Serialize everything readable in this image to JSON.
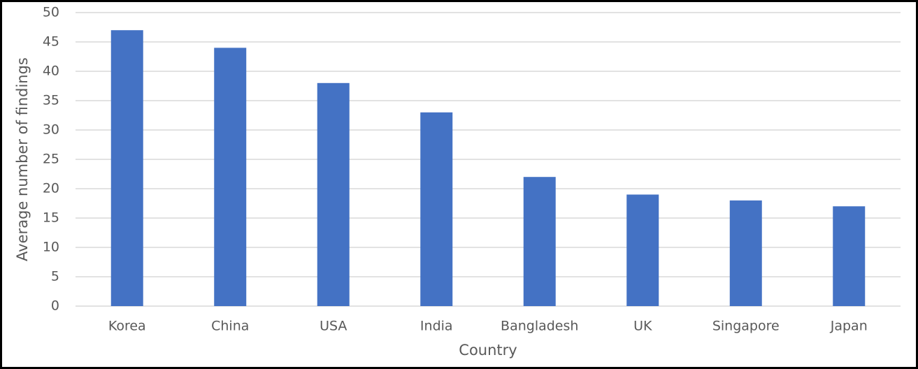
{
  "chart_data": {
    "type": "bar",
    "x_label": "Country",
    "y_label": "Average number of findings",
    "categories": [
      "Korea",
      "China",
      "USA",
      "India",
      "Bangladesh",
      "UK",
      "Singapore",
      "Japan"
    ],
    "values": [
      47,
      44,
      38,
      33,
      22,
      19,
      18,
      17
    ],
    "color": "#4472c4",
    "ylim": [
      0,
      50
    ],
    "yticks": [
      0,
      5,
      10,
      15,
      20,
      25,
      30,
      35,
      40,
      45,
      50
    ],
    "grid": true
  }
}
